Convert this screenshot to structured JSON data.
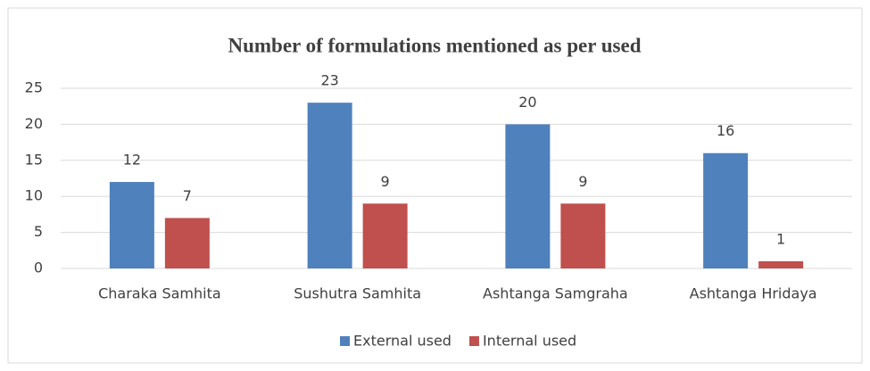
{
  "chart_data": {
    "type": "bar",
    "title": "Number of formulations mentioned as per used",
    "categories": [
      "Charaka Samhita",
      "Sushutra Samhita",
      "Ashtanga Samgraha",
      "Ashtanga Hridaya"
    ],
    "series": [
      {
        "name": "External used",
        "color": "#4f81bd",
        "values": [
          12,
          23,
          20,
          16
        ]
      },
      {
        "name": "Internal used",
        "color": "#c0504d",
        "values": [
          7,
          9,
          9,
          1
        ]
      }
    ],
    "ylim": [
      0,
      25
    ],
    "yticks": [
      0,
      5,
      10,
      15,
      20,
      25
    ],
    "grid": true,
    "legend": "bottom"
  }
}
